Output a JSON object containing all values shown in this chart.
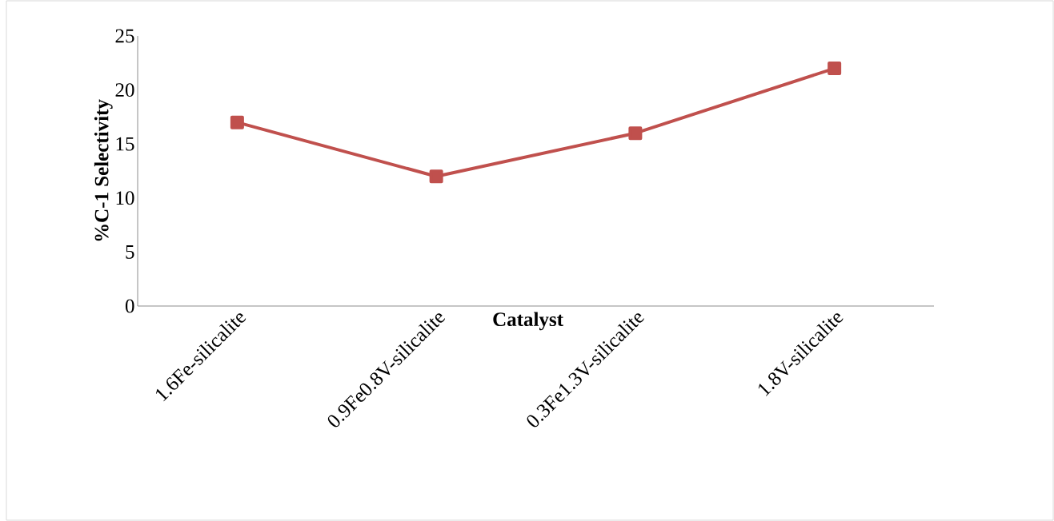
{
  "chart_data": {
    "type": "line",
    "xlabel": "Catalyst",
    "ylabel": "%C-1 Selectivity",
    "categories": [
      "1.6Fe-silicalite",
      "0.9Fe0.8V-silicalite",
      "0.3Fe1.3V-silicalite",
      "1.8V-silicalite"
    ],
    "series": [
      {
        "color": "#c0504d",
        "values": [
          17,
          12,
          16,
          22
        ]
      }
    ],
    "ylim": [
      0,
      25
    ],
    "yticks": [
      0,
      5,
      10,
      15,
      20,
      25
    ],
    "marker": "square",
    "line_style": "solid"
  }
}
